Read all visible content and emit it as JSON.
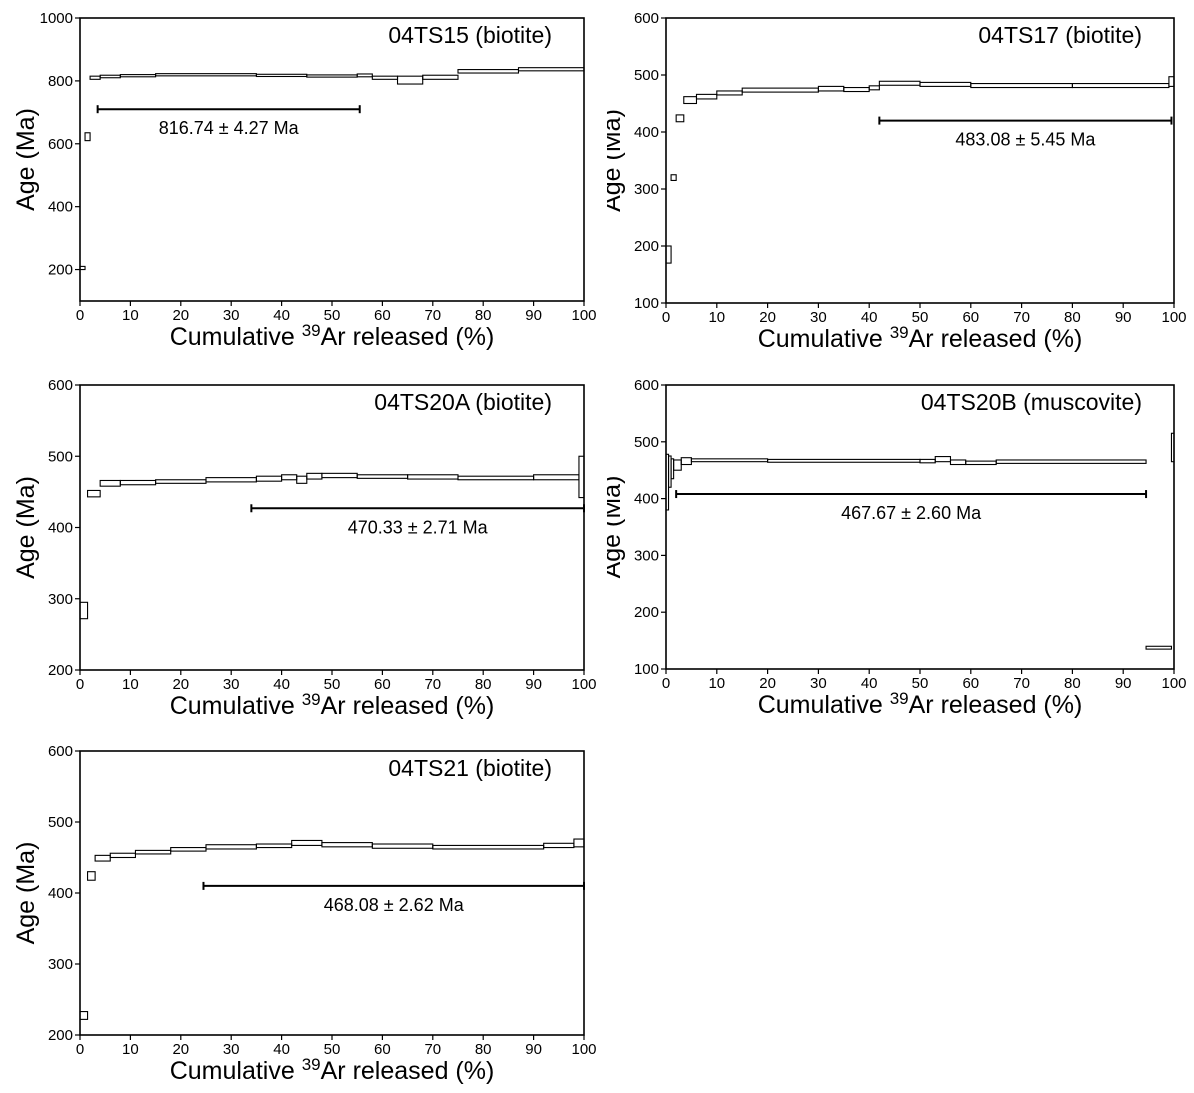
{
  "chart_data": [
    {
      "type": "step",
      "title": "04TS15 (biotite)",
      "xlabel_prefix": "Cumulative ",
      "xlabel_sup": "39",
      "xlabel_suffix": "Ar released (%)",
      "ylabel": "Age (Ma)",
      "xlim": [
        0,
        100
      ],
      "ylim": [
        100,
        1000
      ],
      "xticks": [
        0,
        10,
        20,
        30,
        40,
        50,
        60,
        70,
        80,
        90,
        100
      ],
      "yticks": [
        200,
        400,
        600,
        800,
        1000
      ],
      "steps": [
        {
          "x0": 0,
          "x1": 1,
          "lo": 200,
          "hi": 210
        },
        {
          "x0": 1,
          "x1": 2,
          "lo": 610,
          "hi": 635
        },
        {
          "x0": 2,
          "x1": 4,
          "lo": 805,
          "hi": 815
        },
        {
          "x0": 4,
          "x1": 8,
          "lo": 810,
          "hi": 818
        },
        {
          "x0": 8,
          "x1": 15,
          "lo": 813,
          "hi": 820
        },
        {
          "x0": 15,
          "x1": 35,
          "lo": 816,
          "hi": 823
        },
        {
          "x0": 35,
          "x1": 45,
          "lo": 814,
          "hi": 821
        },
        {
          "x0": 45,
          "x1": 55,
          "lo": 812,
          "hi": 819
        },
        {
          "x0": 55,
          "x1": 58,
          "lo": 813,
          "hi": 822
        },
        {
          "x0": 58,
          "x1": 63,
          "lo": 805,
          "hi": 815
        },
        {
          "x0": 63,
          "x1": 68,
          "lo": 790,
          "hi": 815
        },
        {
          "x0": 68,
          "x1": 75,
          "lo": 805,
          "hi": 818
        },
        {
          "x0": 75,
          "x1": 87,
          "lo": 825,
          "hi": 836
        },
        {
          "x0": 87,
          "x1": 100,
          "lo": 832,
          "hi": 842
        }
      ],
      "plateau": {
        "x0": 3.5,
        "x1": 55.5,
        "age": 710,
        "label": "816.74 ± 4.27 Ma"
      }
    },
    {
      "type": "step",
      "title": "04TS17 (biotite)",
      "xlabel_prefix": "Cumulative ",
      "xlabel_sup": "39",
      "xlabel_suffix": "Ar released (%)",
      "ylabel": "Age (Ma)",
      "xlim": [
        0,
        100
      ],
      "ylim": [
        100,
        600
      ],
      "xticks": [
        0,
        10,
        20,
        30,
        40,
        50,
        60,
        70,
        80,
        90,
        100
      ],
      "yticks": [
        100,
        200,
        300,
        400,
        500,
        600
      ],
      "steps": [
        {
          "x0": 0,
          "x1": 1,
          "lo": 170,
          "hi": 200
        },
        {
          "x0": 1,
          "x1": 2,
          "lo": 315,
          "hi": 325
        },
        {
          "x0": 2,
          "x1": 3.5,
          "lo": 418,
          "hi": 430
        },
        {
          "x0": 3.5,
          "x1": 6,
          "lo": 450,
          "hi": 462
        },
        {
          "x0": 6,
          "x1": 10,
          "lo": 458,
          "hi": 466
        },
        {
          "x0": 10,
          "x1": 15,
          "lo": 465,
          "hi": 472
        },
        {
          "x0": 15,
          "x1": 30,
          "lo": 470,
          "hi": 477
        },
        {
          "x0": 30,
          "x1": 35,
          "lo": 472,
          "hi": 480
        },
        {
          "x0": 35,
          "x1": 40,
          "lo": 471,
          "hi": 478
        },
        {
          "x0": 40,
          "x1": 42,
          "lo": 474,
          "hi": 481
        },
        {
          "x0": 42,
          "x1": 50,
          "lo": 482,
          "hi": 489
        },
        {
          "x0": 50,
          "x1": 60,
          "lo": 480,
          "hi": 487
        },
        {
          "x0": 60,
          "x1": 80,
          "lo": 478,
          "hi": 485
        },
        {
          "x0": 80,
          "x1": 99,
          "lo": 478,
          "hi": 485
        },
        {
          "x0": 99,
          "x1": 100,
          "lo": 480,
          "hi": 497
        }
      ],
      "plateau": {
        "x0": 42,
        "x1": 99.5,
        "age": 420,
        "label": "483.08 ± 5.45 Ma"
      }
    },
    {
      "type": "step",
      "title": "04TS20A (biotite)",
      "xlabel_prefix": "Cumulative ",
      "xlabel_sup": "39",
      "xlabel_suffix": "Ar released (%)",
      "ylabel": "Age (Ma)",
      "xlim": [
        0,
        100
      ],
      "ylim": [
        200,
        600
      ],
      "xticks": [
        0,
        10,
        20,
        30,
        40,
        50,
        60,
        70,
        80,
        90,
        100
      ],
      "yticks": [
        200,
        300,
        400,
        500,
        600
      ],
      "steps": [
        {
          "x0": 0,
          "x1": 1.5,
          "lo": 272,
          "hi": 295
        },
        {
          "x0": 1.5,
          "x1": 4,
          "lo": 443,
          "hi": 452
        },
        {
          "x0": 4,
          "x1": 8,
          "lo": 458,
          "hi": 466
        },
        {
          "x0": 8,
          "x1": 15,
          "lo": 460,
          "hi": 466
        },
        {
          "x0": 15,
          "x1": 25,
          "lo": 462,
          "hi": 467
        },
        {
          "x0": 25,
          "x1": 35,
          "lo": 464,
          "hi": 470
        },
        {
          "x0": 35,
          "x1": 40,
          "lo": 465,
          "hi": 472
        },
        {
          "x0": 40,
          "x1": 43,
          "lo": 467,
          "hi": 474
        },
        {
          "x0": 43,
          "x1": 45,
          "lo": 462,
          "hi": 472
        },
        {
          "x0": 45,
          "x1": 48,
          "lo": 468,
          "hi": 476
        },
        {
          "x0": 48,
          "x1": 55,
          "lo": 470,
          "hi": 476
        },
        {
          "x0": 55,
          "x1": 65,
          "lo": 469,
          "hi": 474
        },
        {
          "x0": 65,
          "x1": 75,
          "lo": 468,
          "hi": 474
        },
        {
          "x0": 75,
          "x1": 90,
          "lo": 467,
          "hi": 472
        },
        {
          "x0": 90,
          "x1": 99,
          "lo": 467,
          "hi": 474
        },
        {
          "x0": 99,
          "x1": 100,
          "lo": 442,
          "hi": 500
        }
      ],
      "plateau": {
        "x0": 34,
        "x1": 100,
        "age": 427,
        "label": "470.33 ± 2.71 Ma"
      }
    },
    {
      "type": "step",
      "title": "04TS20B (muscovite)",
      "xlabel_prefix": "Cumulative ",
      "xlabel_sup": "39",
      "xlabel_suffix": "Ar released (%)",
      "ylabel": "Age (Ma)",
      "xlim": [
        0,
        100
      ],
      "ylim": [
        100,
        600
      ],
      "xticks": [
        0,
        10,
        20,
        30,
        40,
        50,
        60,
        70,
        80,
        90,
        100
      ],
      "yticks": [
        100,
        200,
        300,
        400,
        500,
        600
      ],
      "steps": [
        {
          "x0": 0,
          "x1": 0.5,
          "lo": 380,
          "hi": 478
        },
        {
          "x0": 0.5,
          "x1": 1,
          "lo": 420,
          "hi": 475
        },
        {
          "x0": 1,
          "x1": 1.5,
          "lo": 435,
          "hi": 470
        },
        {
          "x0": 1.5,
          "x1": 3,
          "lo": 450,
          "hi": 468
        },
        {
          "x0": 3,
          "x1": 5,
          "lo": 460,
          "hi": 472
        },
        {
          "x0": 5,
          "x1": 20,
          "lo": 465,
          "hi": 470
        },
        {
          "x0": 20,
          "x1": 50,
          "lo": 464,
          "hi": 469
        },
        {
          "x0": 50,
          "x1": 53,
          "lo": 463,
          "hi": 469
        },
        {
          "x0": 53,
          "x1": 56,
          "lo": 465,
          "hi": 474
        },
        {
          "x0": 56,
          "x1": 59,
          "lo": 460,
          "hi": 468
        },
        {
          "x0": 59,
          "x1": 65,
          "lo": 460,
          "hi": 466
        },
        {
          "x0": 65,
          "x1": 94.5,
          "lo": 462,
          "hi": 468
        },
        {
          "x0": 94.5,
          "x1": 99.5,
          "lo": 135,
          "hi": 140
        },
        {
          "x0": 99.5,
          "x1": 100,
          "lo": 465,
          "hi": 515
        }
      ],
      "plateau": {
        "x0": 2,
        "x1": 94.5,
        "age": 408,
        "label": "467.67 ± 2.60 Ma"
      }
    },
    {
      "type": "step",
      "title": "04TS21 (biotite)",
      "xlabel_prefix": "Cumulative ",
      "xlabel_sup": "39",
      "xlabel_suffix": "Ar released (%)",
      "ylabel": "Age (Ma)",
      "xlim": [
        0,
        100
      ],
      "ylim": [
        200,
        600
      ],
      "xticks": [
        0,
        10,
        20,
        30,
        40,
        50,
        60,
        70,
        80,
        90,
        100
      ],
      "yticks": [
        200,
        300,
        400,
        500,
        600
      ],
      "steps": [
        {
          "x0": 0,
          "x1": 1.5,
          "lo": 222,
          "hi": 233
        },
        {
          "x0": 1.5,
          "x1": 3,
          "lo": 418,
          "hi": 430
        },
        {
          "x0": 3,
          "x1": 6,
          "lo": 445,
          "hi": 453
        },
        {
          "x0": 6,
          "x1": 11,
          "lo": 450,
          "hi": 456
        },
        {
          "x0": 11,
          "x1": 18,
          "lo": 455,
          "hi": 460
        },
        {
          "x0": 18,
          "x1": 25,
          "lo": 459,
          "hi": 464
        },
        {
          "x0": 25,
          "x1": 35,
          "lo": 462,
          "hi": 468
        },
        {
          "x0": 35,
          "x1": 42,
          "lo": 464,
          "hi": 469
        },
        {
          "x0": 42,
          "x1": 48,
          "lo": 467,
          "hi": 474
        },
        {
          "x0": 48,
          "x1": 58,
          "lo": 465,
          "hi": 471
        },
        {
          "x0": 58,
          "x1": 70,
          "lo": 463,
          "hi": 469
        },
        {
          "x0": 70,
          "x1": 92,
          "lo": 462,
          "hi": 467
        },
        {
          "x0": 92,
          "x1": 98,
          "lo": 464,
          "hi": 470
        },
        {
          "x0": 98,
          "x1": 100,
          "lo": 465,
          "hi": 476
        }
      ],
      "plateau": {
        "x0": 24.5,
        "x1": 100,
        "age": 410,
        "label": "468.08 ± 2.62 Ma"
      }
    }
  ]
}
